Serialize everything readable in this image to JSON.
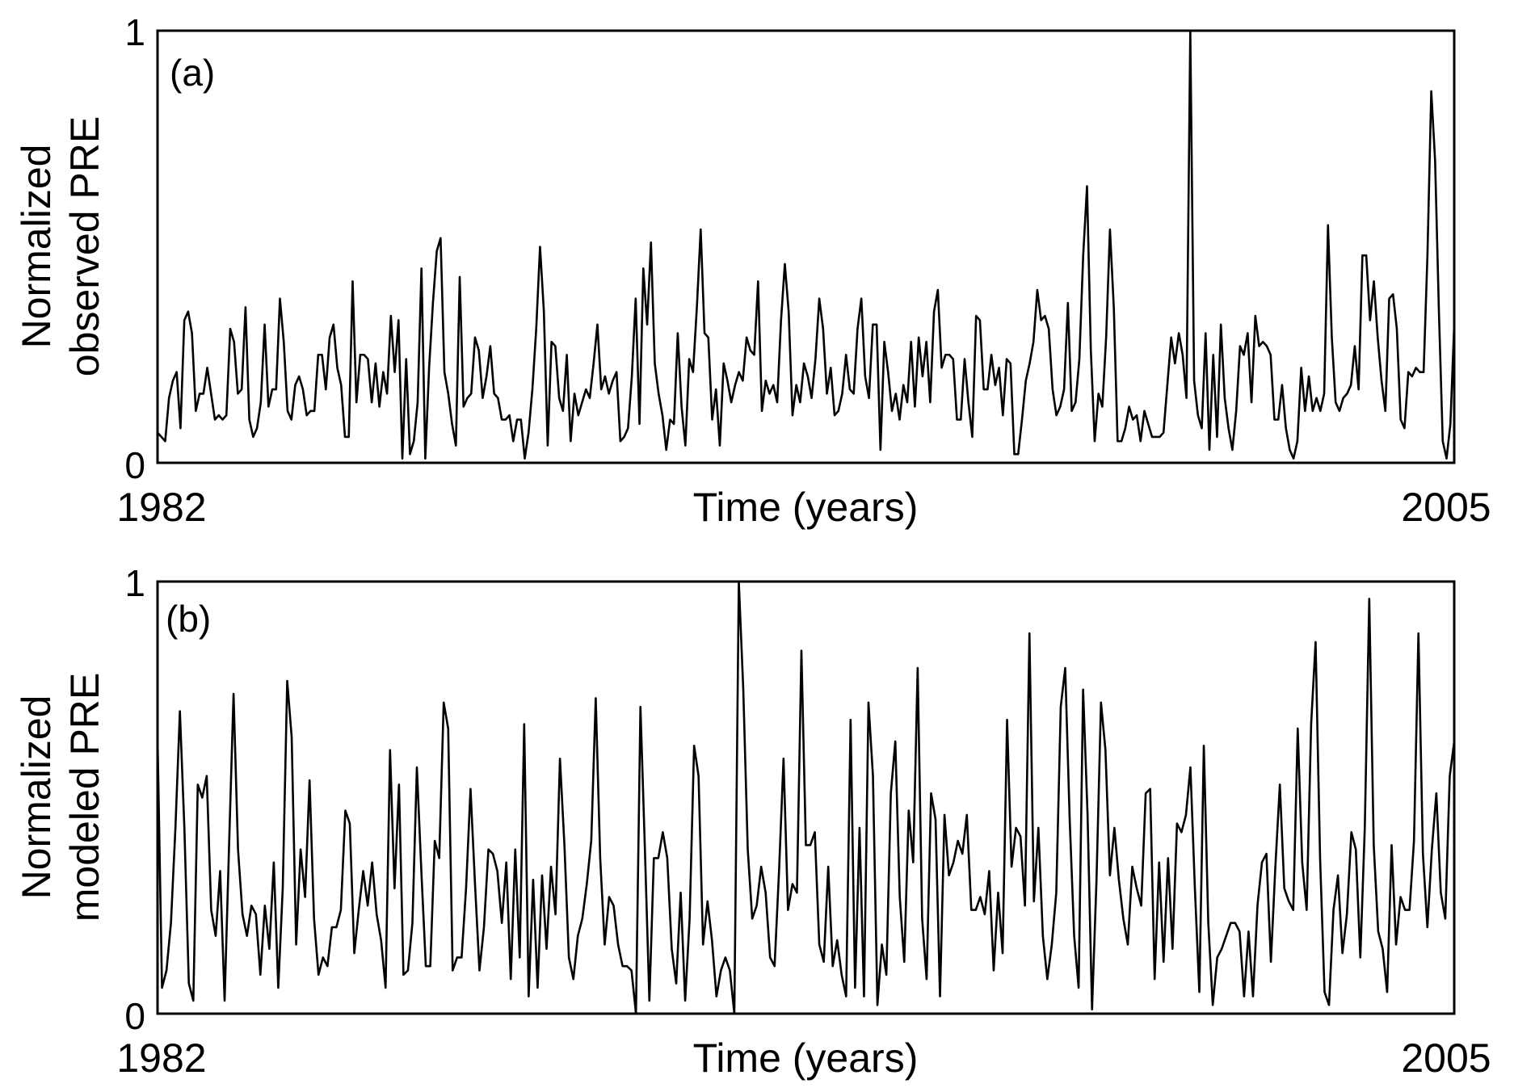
{
  "chart_data": [
    {
      "type": "line",
      "panel_label": "(a)",
      "ylabel_lines": [
        "Normalized",
        "observed PRE"
      ],
      "xlabel": "Time (years)",
      "x_tick_labels": [
        "1982",
        "2005"
      ],
      "y_tick_labels": [
        "0",
        "1"
      ],
      "xlim": [
        1982,
        2005
      ],
      "ylim": [
        0,
        1
      ],
      "grid": false,
      "x_start": 1982,
      "x_step": 0.0833,
      "series": [
        {
          "color": "#000000",
          "values": [
            0.07,
            0.06,
            0.05,
            0.15,
            0.19,
            0.21,
            0.08,
            0.33,
            0.35,
            0.3,
            0.12,
            0.16,
            0.16,
            0.22,
            0.16,
            0.1,
            0.11,
            0.1,
            0.11,
            0.31,
            0.28,
            0.16,
            0.17,
            0.36,
            0.1,
            0.06,
            0.08,
            0.14,
            0.32,
            0.13,
            0.17,
            0.17,
            0.38,
            0.28,
            0.12,
            0.1,
            0.18,
            0.2,
            0.17,
            0.11,
            0.12,
            0.12,
            0.25,
            0.25,
            0.17,
            0.29,
            0.32,
            0.22,
            0.18,
            0.06,
            0.06,
            0.42,
            0.14,
            0.25,
            0.25,
            0.24,
            0.14,
            0.23,
            0.13,
            0.21,
            0.16,
            0.34,
            0.21,
            0.33,
            0.01,
            0.24,
            0.02,
            0.05,
            0.14,
            0.45,
            0.01,
            0.22,
            0.37,
            0.49,
            0.52,
            0.21,
            0.16,
            0.09,
            0.04,
            0.43,
            0.13,
            0.15,
            0.16,
            0.29,
            0.26,
            0.15,
            0.2,
            0.27,
            0.16,
            0.15,
            0.1,
            0.1,
            0.11,
            0.05,
            0.1,
            0.1,
            0.01,
            0.07,
            0.17,
            0.31,
            0.5,
            0.35,
            0.04,
            0.28,
            0.27,
            0.15,
            0.12,
            0.25,
            0.05,
            0.16,
            0.11,
            0.14,
            0.17,
            0.15,
            0.23,
            0.32,
            0.17,
            0.2,
            0.16,
            0.19,
            0.21,
            0.05,
            0.06,
            0.08,
            0.2,
            0.38,
            0.09,
            0.45,
            0.32,
            0.51,
            0.23,
            0.16,
            0.11,
            0.03,
            0.1,
            0.09,
            0.3,
            0.13,
            0.04,
            0.24,
            0.21,
            0.36,
            0.54,
            0.3,
            0.29,
            0.1,
            0.17,
            0.04,
            0.23,
            0.19,
            0.14,
            0.18,
            0.21,
            0.19,
            0.29,
            0.26,
            0.25,
            0.42,
            0.12,
            0.19,
            0.16,
            0.18,
            0.14,
            0.33,
            0.46,
            0.35,
            0.11,
            0.18,
            0.14,
            0.23,
            0.2,
            0.15,
            0.24,
            0.38,
            0.31,
            0.16,
            0.22,
            0.11,
            0.12,
            0.16,
            0.25,
            0.17,
            0.16,
            0.31,
            0.38,
            0.2,
            0.15,
            0.32,
            0.32,
            0.03,
            0.28,
            0.21,
            0.12,
            0.16,
            0.1,
            0.18,
            0.14,
            0.28,
            0.13,
            0.29,
            0.2,
            0.28,
            0.14,
            0.35,
            0.4,
            0.22,
            0.25,
            0.25,
            0.24,
            0.1,
            0.1,
            0.24,
            0.14,
            0.06,
            0.34,
            0.33,
            0.17,
            0.17,
            0.25,
            0.18,
            0.22,
            0.11,
            0.24,
            0.23,
            0.02,
            0.02,
            0.1,
            0.19,
            0.23,
            0.28,
            0.4,
            0.33,
            0.34,
            0.31,
            0.17,
            0.11,
            0.13,
            0.17,
            0.37,
            0.12,
            0.14,
            0.24,
            0.48,
            0.64,
            0.26,
            0.05,
            0.16,
            0.13,
            0.29,
            0.54,
            0.36,
            0.05,
            0.05,
            0.08,
            0.13,
            0.1,
            0.11,
            0.05,
            0.12,
            0.09,
            0.06,
            0.06,
            0.06,
            0.07,
            0.18,
            0.29,
            0.23,
            0.3,
            0.25,
            0.15,
            1.0,
            0.19,
            0.11,
            0.08,
            0.3,
            0.03,
            0.25,
            0.06,
            0.32,
            0.15,
            0.08,
            0.03,
            0.12,
            0.27,
            0.25,
            0.3,
            0.14,
            0.34,
            0.27,
            0.28,
            0.27,
            0.25,
            0.1,
            0.1,
            0.18,
            0.08,
            0.03,
            0.01,
            0.05,
            0.22,
            0.12,
            0.2,
            0.12,
            0.15,
            0.12,
            0.16,
            0.55,
            0.29,
            0.14,
            0.12,
            0.15,
            0.16,
            0.18,
            0.27,
            0.17,
            0.48,
            0.48,
            0.33,
            0.42,
            0.29,
            0.19,
            0.12,
            0.38,
            0.39,
            0.31,
            0.1,
            0.08,
            0.21,
            0.2,
            0.22,
            0.21,
            0.21,
            0.48,
            0.86,
            0.7,
            0.35,
            0.05,
            0.01,
            0.09,
            0.32
          ]
        }
      ]
    },
    {
      "type": "line",
      "panel_label": "(b)",
      "ylabel_lines": [
        "Normalized",
        "modeled PRE"
      ],
      "xlabel": "Time (years)",
      "x_tick_labels": [
        "1982",
        "2005"
      ],
      "y_tick_labels": [
        "0",
        "1"
      ],
      "xlim": [
        1982,
        2005
      ],
      "ylim": [
        0,
        1
      ],
      "grid": false,
      "x_start": 1982,
      "x_step": 0.0833,
      "series": [
        {
          "color": "#000000",
          "values": [
            0.64,
            0.06,
            0.1,
            0.21,
            0.43,
            0.7,
            0.43,
            0.07,
            0.03,
            0.53,
            0.5,
            0.55,
            0.24,
            0.18,
            0.33,
            0.03,
            0.39,
            0.74,
            0.38,
            0.23,
            0.18,
            0.25,
            0.23,
            0.09,
            0.25,
            0.15,
            0.35,
            0.06,
            0.29,
            0.77,
            0.64,
            0.16,
            0.38,
            0.27,
            0.54,
            0.22,
            0.09,
            0.13,
            0.11,
            0.2,
            0.2,
            0.24,
            0.47,
            0.44,
            0.14,
            0.24,
            0.33,
            0.25,
            0.35,
            0.23,
            0.17,
            0.06,
            0.61,
            0.29,
            0.53,
            0.09,
            0.1,
            0.21,
            0.57,
            0.33,
            0.11,
            0.11,
            0.4,
            0.36,
            0.72,
            0.66,
            0.1,
            0.13,
            0.13,
            0.29,
            0.52,
            0.3,
            0.1,
            0.2,
            0.38,
            0.37,
            0.33,
            0.21,
            0.35,
            0.08,
            0.38,
            0.13,
            0.67,
            0.04,
            0.31,
            0.06,
            0.32,
            0.15,
            0.34,
            0.23,
            0.59,
            0.39,
            0.13,
            0.08,
            0.18,
            0.22,
            0.3,
            0.4,
            0.73,
            0.36,
            0.16,
            0.27,
            0.25,
            0.16,
            0.11,
            0.11,
            0.1,
            0.0,
            0.71,
            0.38,
            0.03,
            0.36,
            0.36,
            0.42,
            0.36,
            0.15,
            0.07,
            0.28,
            0.03,
            0.22,
            0.62,
            0.55,
            0.16,
            0.26,
            0.17,
            0.04,
            0.1,
            0.13,
            0.1,
            0.0,
            1.0,
            0.75,
            0.38,
            0.22,
            0.25,
            0.34,
            0.28,
            0.13,
            0.11,
            0.33,
            0.59,
            0.24,
            0.3,
            0.28,
            0.84,
            0.39,
            0.39,
            0.42,
            0.16,
            0.12,
            0.34,
            0.11,
            0.17,
            0.09,
            0.04,
            0.68,
            0.06,
            0.43,
            0.04,
            0.72,
            0.55,
            0.02,
            0.16,
            0.09,
            0.51,
            0.63,
            0.27,
            0.12,
            0.47,
            0.35,
            0.8,
            0.22,
            0.08,
            0.51,
            0.45,
            0.04,
            0.46,
            0.32,
            0.35,
            0.4,
            0.37,
            0.46,
            0.24,
            0.24,
            0.27,
            0.23,
            0.33,
            0.1,
            0.28,
            0.14,
            0.68,
            0.34,
            0.43,
            0.41,
            0.25,
            0.88,
            0.26,
            0.43,
            0.18,
            0.08,
            0.16,
            0.28,
            0.71,
            0.8,
            0.45,
            0.18,
            0.06,
            0.75,
            0.46,
            0.01,
            0.31,
            0.72,
            0.61,
            0.32,
            0.43,
            0.31,
            0.22,
            0.16,
            0.34,
            0.29,
            0.25,
            0.51,
            0.52,
            0.08,
            0.35,
            0.12,
            0.36,
            0.15,
            0.44,
            0.42,
            0.46,
            0.57,
            0.29,
            0.05,
            0.62,
            0.21,
            0.02,
            0.13,
            0.15,
            0.18,
            0.21,
            0.21,
            0.19,
            0.04,
            0.19,
            0.04,
            0.25,
            0.35,
            0.37,
            0.12,
            0.34,
            0.53,
            0.29,
            0.26,
            0.24,
            0.66,
            0.35,
            0.24,
            0.67,
            0.86,
            0.36,
            0.05,
            0.02,
            0.24,
            0.32,
            0.14,
            0.23,
            0.42,
            0.38,
            0.13,
            0.43,
            0.96,
            0.39,
            0.19,
            0.15,
            0.05,
            0.39,
            0.16,
            0.27,
            0.24,
            0.24,
            0.4,
            0.88,
            0.37,
            0.2,
            0.38,
            0.51,
            0.28,
            0.22,
            0.55,
            0.63
          ]
        }
      ]
    }
  ]
}
